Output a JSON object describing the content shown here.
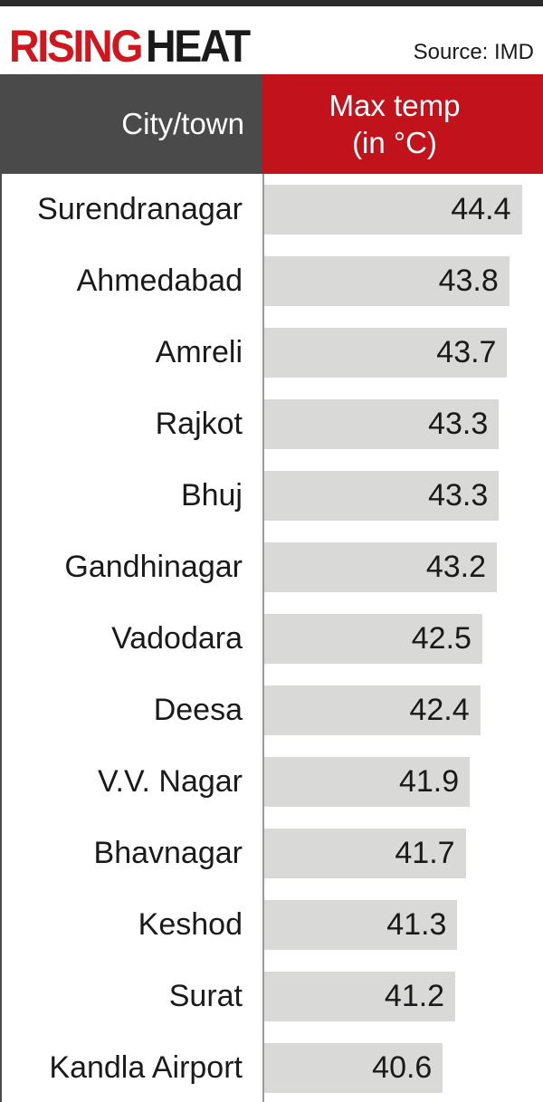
{
  "header": {
    "title_part1": "RISING",
    "title_part2": "HEAT",
    "source": "Source: IMD"
  },
  "table": {
    "col_city": "City/town",
    "col_temp_line1": "Max temp",
    "col_temp_line2": "(in °C)"
  },
  "colors": {
    "title_red": "#d0161e",
    "header_red": "#c2121c",
    "header_gray": "#4a4a4a",
    "bar_gray": "#d9d9d8"
  },
  "chart_data": {
    "type": "bar",
    "orientation": "horizontal",
    "title": "RISING HEAT",
    "source": "Source: IMD",
    "xlabel": "Max temp (in °C)",
    "ylabel": "City/town",
    "categories": [
      "Surendranagar",
      "Ahmedabad",
      "Amreli",
      "Rajkot",
      "Bhuj",
      "Gandhinagar",
      "Vadodara",
      "Deesa",
      "V.V. Nagar",
      "Bhavnagar",
      "Keshod",
      "Surat",
      "Kandla Airport"
    ],
    "values": [
      44.4,
      43.8,
      43.7,
      43.3,
      43.3,
      43.2,
      42.5,
      42.4,
      41.9,
      41.7,
      41.3,
      41.2,
      40.6
    ],
    "labels": [
      "44.4",
      "43.8",
      "43.7",
      "43.3",
      "43.3",
      "43.2",
      "42.5",
      "42.4",
      "41.9",
      "41.7",
      "41.3",
      "41.2",
      "40.6"
    ],
    "xlim": [
      32,
      44.9
    ],
    "grid": false,
    "legend": "none"
  }
}
